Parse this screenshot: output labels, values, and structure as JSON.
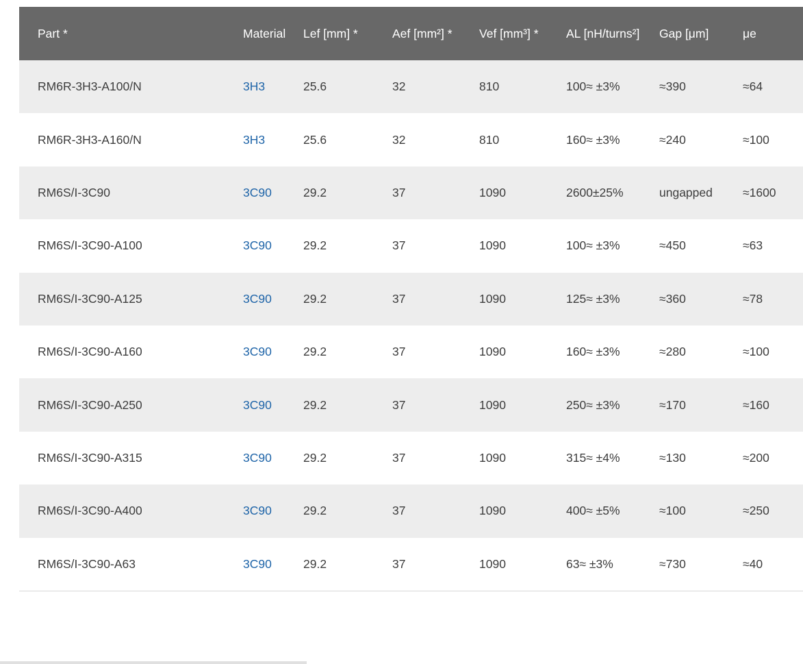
{
  "colors": {
    "header_bg": "#686868",
    "header_text": "#ffffff",
    "stripe_bg": "#ededed",
    "row_bg": "#ffffff",
    "body_text": "#3d3d3d",
    "link": "#1e64a8",
    "table_bottom_border": "#d6d6d6",
    "footer_bar": "#e0e0e0",
    "page_bg": "#ffffff"
  },
  "table": {
    "columns": [
      {
        "key": "part",
        "label": "Part *"
      },
      {
        "key": "material",
        "label": "Material"
      },
      {
        "key": "lef",
        "label": "Lef [mm] *"
      },
      {
        "key": "aef",
        "label": "Aef [mm²] *"
      },
      {
        "key": "vef",
        "label": "Vef [mm³] *"
      },
      {
        "key": "al",
        "label": "AL [nH/turns²]"
      },
      {
        "key": "gap",
        "label": "Gap [μm]"
      },
      {
        "key": "ue",
        "label": "μe"
      }
    ],
    "rows": [
      {
        "part": "RM6R-3H3-A100/N",
        "material": "3H3",
        "lef": "25.6",
        "aef": "32",
        "vef": "810",
        "al": "100≈ ±3%",
        "gap": "≈390",
        "ue": "≈64"
      },
      {
        "part": "RM6R-3H3-A160/N",
        "material": "3H3",
        "lef": "25.6",
        "aef": "32",
        "vef": "810",
        "al": "160≈ ±3%",
        "gap": "≈240",
        "ue": "≈100"
      },
      {
        "part": "RM6S/I-3C90",
        "material": "3C90",
        "lef": "29.2",
        "aef": "37",
        "vef": "1090",
        "al": "2600±25%",
        "gap": "ungapped",
        "ue": "≈1600"
      },
      {
        "part": "RM6S/I-3C90-A100",
        "material": "3C90",
        "lef": "29.2",
        "aef": "37",
        "vef": "1090",
        "al": "100≈ ±3%",
        "gap": "≈450",
        "ue": "≈63"
      },
      {
        "part": "RM6S/I-3C90-A125",
        "material": "3C90",
        "lef": "29.2",
        "aef": "37",
        "vef": "1090",
        "al": "125≈ ±3%",
        "gap": "≈360",
        "ue": "≈78"
      },
      {
        "part": "RM6S/I-3C90-A160",
        "material": "3C90",
        "lef": "29.2",
        "aef": "37",
        "vef": "1090",
        "al": "160≈ ±3%",
        "gap": "≈280",
        "ue": "≈100"
      },
      {
        "part": "RM6S/I-3C90-A250",
        "material": "3C90",
        "lef": "29.2",
        "aef": "37",
        "vef": "1090",
        "al": "250≈ ±3%",
        "gap": "≈170",
        "ue": "≈160"
      },
      {
        "part": "RM6S/I-3C90-A315",
        "material": "3C90",
        "lef": "29.2",
        "aef": "37",
        "vef": "1090",
        "al": "315≈ ±4%",
        "gap": "≈130",
        "ue": "≈200"
      },
      {
        "part": "RM6S/I-3C90-A400",
        "material": "3C90",
        "lef": "29.2",
        "aef": "37",
        "vef": "1090",
        "al": "400≈ ±5%",
        "gap": "≈100",
        "ue": "≈250"
      },
      {
        "part": "RM6S/I-3C90-A63",
        "material": "3C90",
        "lef": "29.2",
        "aef": "37",
        "vef": "1090",
        "al": "63≈ ±3%",
        "gap": "≈730",
        "ue": "≈40"
      }
    ]
  }
}
